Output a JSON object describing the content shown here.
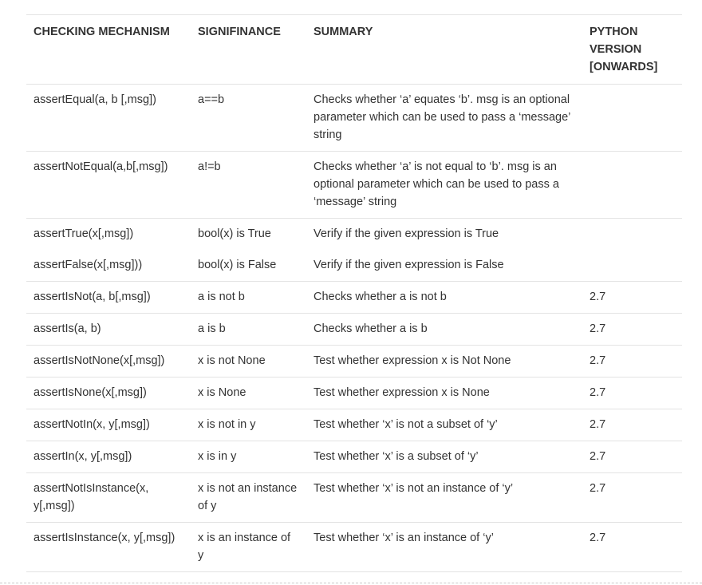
{
  "table": {
    "headers": [
      "CHECKING MECHANISM",
      "SIGNIFINANCE",
      "SUMMARY",
      "PYTHON VERSION [ONWARDS]"
    ],
    "rows": [
      [
        "assertEqual(a, b [,msg])",
        "a==b",
        "Checks whether ‘a’ equates ‘b’. msg is an optional parameter which can be used to pass a ‘message’ string",
        ""
      ],
      [
        "assertNotEqual(a,b[,msg])",
        "a!=b",
        "Checks whether ‘a’ is not equal to ‘b’. msg is an optional parameter which can be used to pass a ‘message’ string",
        ""
      ],
      [
        "assertTrue(x[,msg])",
        "bool(x) is True",
        "Verify if the given expression is True",
        ""
      ],
      [
        "assertFalse(x[,msg]))",
        "bool(x) is False",
        "Verify if the given expression is False",
        ""
      ],
      [
        "assertIsNot(a, b[,msg])",
        "a is not b",
        "Checks whether a is not b",
        "2.7"
      ],
      [
        "assertIs(a, b)",
        "a is b",
        "Checks whether a is b",
        "2.7"
      ],
      [
        "assertIsNotNone(x[,msg])",
        "x is not None",
        "Test whether expression x is Not None",
        "2.7"
      ],
      [
        "assertIsNone(x[,msg])",
        "x is None",
        "Test whether expression x is None",
        "2.7"
      ],
      [
        "assertNotIn(x, y[,msg])",
        "x is not in y",
        "Test whether ‘x’ is not a subset of ‘y’",
        "2.7"
      ],
      [
        "assertIn(x, y[,msg])",
        "x is in y",
        "Test whether ‘x’ is a subset of ‘y’",
        "2.7"
      ],
      [
        "assertNotIsInstance(x, y[,msg])",
        "x is not an instance of y",
        "Test whether ‘x’ is not an instance of ‘y’",
        "2.7"
      ],
      [
        "assertIsInstance(x, y[,msg])",
        "x is an instance of y",
        "Test whether ‘x’ is an instance of ‘y’",
        "2.7"
      ]
    ]
  }
}
